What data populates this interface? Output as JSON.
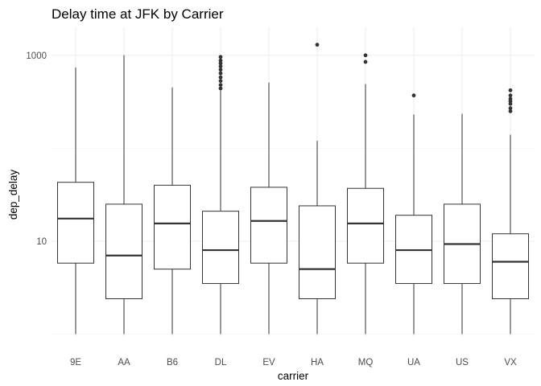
{
  "chart_data": {
    "type": "boxplot",
    "title": "Delay time at JFK by Carrier",
    "xlabel": "carrier",
    "ylabel": "dep_delay",
    "y_scale": "log10",
    "y_ticks": [
      {
        "value": 10,
        "label": "10"
      },
      {
        "value": 1000,
        "label": "1000"
      }
    ],
    "ylim": [
      0.95,
      2000
    ],
    "grid": true,
    "categories": [
      "9E",
      "AA",
      "B6",
      "DL",
      "EV",
      "HA",
      "MQ",
      "UA",
      "US",
      "VX"
    ],
    "boxes": [
      {
        "carrier": "9E",
        "whisker_low": 1,
        "q1": 5.8,
        "median": 17.5,
        "q3": 43,
        "whisker_high": 740,
        "outliers": []
      },
      {
        "carrier": "AA",
        "whisker_low": 1,
        "q1": 2.4,
        "median": 7,
        "q3": 25,
        "whisker_high": 1000,
        "outliers": []
      },
      {
        "carrier": "B6",
        "whisker_low": 1,
        "q1": 5,
        "median": 15.5,
        "q3": 40,
        "whisker_high": 450,
        "outliers": []
      },
      {
        "carrier": "DL",
        "whisker_low": 1,
        "q1": 3.5,
        "median": 8,
        "q3": 21,
        "whisker_high": 420,
        "outliers": [
          440,
          480,
          530,
          580,
          640,
          700,
          760,
          820,
          880,
          960
        ]
      },
      {
        "carrier": "EV",
        "whisker_low": 1,
        "q1": 5.8,
        "median": 16.5,
        "q3": 38,
        "whisker_high": 510,
        "outliers": []
      },
      {
        "carrier": "HA",
        "whisker_low": 1,
        "q1": 2.4,
        "median": 5,
        "q3": 24,
        "whisker_high": 120,
        "outliers": [
          1300
        ]
      },
      {
        "carrier": "MQ",
        "whisker_low": 1,
        "q1": 5.8,
        "median": 15.5,
        "q3": 37,
        "whisker_high": 490,
        "outliers": [
          850,
          1000
        ]
      },
      {
        "carrier": "UA",
        "whisker_low": 1,
        "q1": 3.5,
        "median": 8,
        "q3": 19,
        "whisker_high": 230,
        "outliers": [
          370
        ]
      },
      {
        "carrier": "US",
        "whisker_low": 1,
        "q1": 3.5,
        "median": 9.3,
        "q3": 25,
        "whisker_high": 235,
        "outliers": []
      },
      {
        "carrier": "VX",
        "whisker_low": 1,
        "q1": 2.4,
        "median": 6,
        "q3": 12,
        "whisker_high": 140,
        "outliers": [
          250,
          270,
          300,
          320,
          340,
          370,
          420
        ]
      }
    ]
  }
}
